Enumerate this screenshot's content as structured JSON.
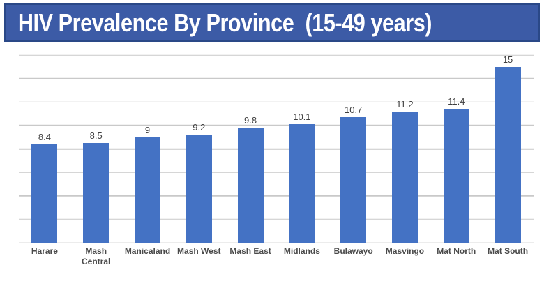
{
  "title": {
    "text": "HIV Prevalence By Province  (15-49 years)"
  },
  "colors": {
    "banner_bg": "#3C5BA6",
    "banner_border": "#2A4887",
    "title_text": "#FFFFFF",
    "bar_fill": "#4472C4",
    "gridline": "#C9C9C9",
    "axis_line": "#B3B3B3",
    "value_label": "#3F3F3F",
    "category_label": "#4A4A4A"
  },
  "chart_data": {
    "type": "bar",
    "title": "HIV Prevalence By Province (15-49 years)",
    "categories": [
      "Harare",
      "Mash Central",
      "Manicaland",
      "Mash West",
      "Mash East",
      "Midlands",
      "Bulawayo",
      "Masvingo",
      "Mat North",
      "Mat South"
    ],
    "values": [
      8.4,
      8.5,
      9,
      9.2,
      9.8,
      10.1,
      10.7,
      11.2,
      11.4,
      15
    ],
    "data_labels": [
      "8.4",
      "8.5",
      "9",
      "9.2",
      "9.8",
      "10.1",
      "10.7",
      "11.2",
      "11.4",
      "15"
    ],
    "xlabel": "",
    "ylabel": "",
    "ylim": [
      0,
      16
    ],
    "gridline_step": 2,
    "grid": true,
    "legend_position": "none",
    "y_tick_labels_visible": false
  }
}
